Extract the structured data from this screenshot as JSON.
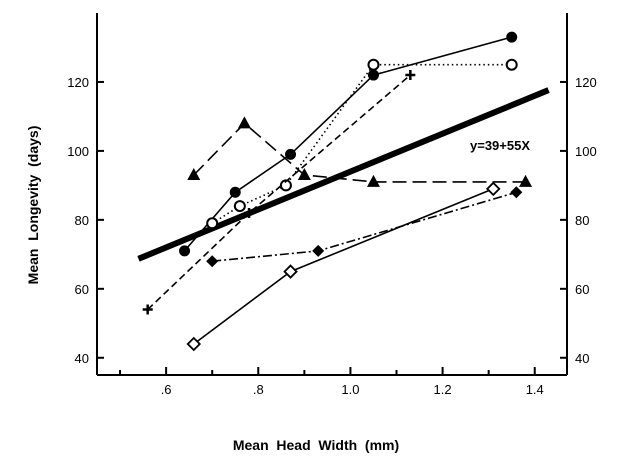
{
  "chart_data": {
    "type": "line",
    "title": "",
    "xlabel": "Mean  Head  Width  (mm)",
    "ylabel": "Mean  Longevity  (days)",
    "xlim": [
      0.45,
      1.47
    ],
    "ylim": [
      35,
      140
    ],
    "x_ticks": [
      {
        "value": 0.6,
        "label": ".6"
      },
      {
        "value": 0.8,
        "label": ".8"
      },
      {
        "value": 1.0,
        "label": "1.0"
      },
      {
        "value": 1.2,
        "label": "1.2"
      },
      {
        "value": 1.4,
        "label": "1.4"
      }
    ],
    "y_ticks": [
      {
        "value": 40,
        "label": "40"
      },
      {
        "value": 60,
        "label": "60"
      },
      {
        "value": 80,
        "label": "80"
      },
      {
        "value": 100,
        "label": "100"
      },
      {
        "value": 120,
        "label": "120"
      }
    ],
    "right_axis": true,
    "grid": false,
    "legend": "none",
    "series": [
      {
        "marker": "filled-circle",
        "line_style": "solid",
        "points": [
          [
            0.64,
            71
          ],
          [
            0.75,
            88
          ],
          [
            0.87,
            99
          ],
          [
            1.05,
            122
          ],
          [
            1.35,
            133
          ]
        ]
      },
      {
        "marker": "open-circle",
        "line_style": "dotted",
        "points": [
          [
            0.7,
            79
          ],
          [
            0.76,
            84
          ],
          [
            0.86,
            90
          ],
          [
            1.05,
            125
          ],
          [
            1.35,
            125
          ]
        ]
      },
      {
        "marker": "plus",
        "line_style": "dashed",
        "points": [
          [
            0.56,
            54
          ],
          [
            0.78,
            82
          ],
          [
            1.13,
            122
          ]
        ]
      },
      {
        "marker": "filled-triangle",
        "line_style": "long-dash",
        "points": [
          [
            0.66,
            93
          ],
          [
            0.77,
            108
          ],
          [
            0.9,
            93
          ],
          [
            1.05,
            91
          ],
          [
            1.38,
            91
          ]
        ]
      },
      {
        "marker": "filled-diamond",
        "line_style": "dash-dot",
        "points": [
          [
            0.7,
            68
          ],
          [
            0.93,
            71
          ],
          [
            1.36,
            88
          ]
        ]
      },
      {
        "marker": "open-diamond",
        "line_style": "solid",
        "points": [
          [
            0.66,
            44
          ],
          [
            0.87,
            65
          ],
          [
            1.31,
            89
          ]
        ]
      }
    ],
    "regression": {
      "label": "y=39+55X",
      "intercept": 39,
      "slope": 55,
      "x_range": [
        0.54,
        1.43
      ]
    }
  }
}
